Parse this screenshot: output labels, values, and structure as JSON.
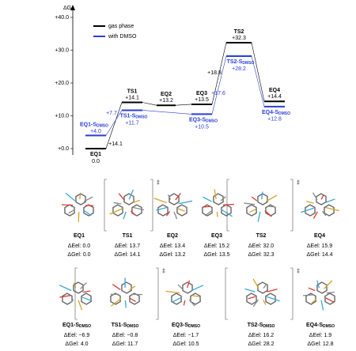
{
  "chart_data": {
    "type": "energy-diagram",
    "y_label": "ΔG",
    "ylim": [
      0,
      40
    ],
    "yticks": [
      {
        "value": 0,
        "label": "+0.0"
      },
      {
        "value": 10,
        "label": "+10.0"
      },
      {
        "value": 20,
        "label": "+20.0"
      },
      {
        "value": 30,
        "label": "+30.0"
      },
      {
        "value": 40,
        "label": "+40.0"
      }
    ],
    "categories": [
      "EQ1",
      "TS1",
      "EQ2",
      "EQ3",
      "TS2",
      "EQ4"
    ],
    "label_sub": "DMSO",
    "series": [
      {
        "name": "gas phase",
        "color": "#000000",
        "values": [
          0.0,
          14.1,
          13.2,
          13.5,
          32.3,
          14.4
        ],
        "value_labels": [
          "0.0",
          "+14.1",
          "+13.2",
          "+13.5",
          "+32.3",
          "+14.4"
        ]
      },
      {
        "name": "with DMSO",
        "color": "#2a3fd6",
        "values": [
          4.0,
          11.7,
          null,
          10.5,
          28.2,
          12.8
        ],
        "value_labels": [
          "+4.0",
          "+11.7",
          null,
          "+10.5",
          "+28.2",
          "+12.8"
        ],
        "point_labels": [
          "EQ1-S",
          "TS1-S",
          null,
          "EQ3-S",
          "TS2-S",
          "EQ4-S"
        ]
      }
    ],
    "annotations": [
      {
        "text": "+14.1",
        "color": "#000000"
      },
      {
        "text": "+7.7",
        "color": "#2a3fd6"
      },
      {
        "text": "+18.8",
        "color": "#000000"
      },
      {
        "text": "+17.6",
        "color": "#2a3fd6"
      }
    ]
  },
  "ts_mark": "‡",
  "structures": [
    {
      "name": "EQ1",
      "dE": "ΔEel: 0.0",
      "dG": "ΔGel: 0.0"
    },
    {
      "name": "TS1",
      "dE": "ΔEel: 13.7",
      "dG": "ΔGel: 14.1"
    },
    {
      "name": "EQ2",
      "dE": "ΔEel: 13.4",
      "dG": "ΔGel: 13.2"
    },
    {
      "name": "EQ3",
      "dE": "ΔEel: 15.2",
      "dG": "ΔGel: 13.5"
    },
    {
      "name": "TS2",
      "dE": "ΔEel: 32.0",
      "dG": "ΔGel: 32.3"
    },
    {
      "name": "EQ4",
      "dE": "ΔEel: 15.9",
      "dG": "ΔGel: 14.4"
    },
    {
      "name": "EQ1-S",
      "dE": "ΔEel: −6.9",
      "dG": "ΔGel: 4.0"
    },
    {
      "name": "TS1-S",
      "dE": "ΔEel: −0.8",
      "dG": "ΔGel: 11.7"
    },
    {
      "name": "EQ3-S",
      "dE": "ΔEel: −1.7",
      "dG": "ΔGel: 10.5"
    },
    {
      "name": "TS2-S",
      "dE": "ΔEel: 16.2",
      "dG": "ΔGel: 28.2"
    },
    {
      "name": "EQ4-S",
      "dE": "ΔEel: 1.9",
      "dG": "ΔGel: 12.8"
    }
  ]
}
